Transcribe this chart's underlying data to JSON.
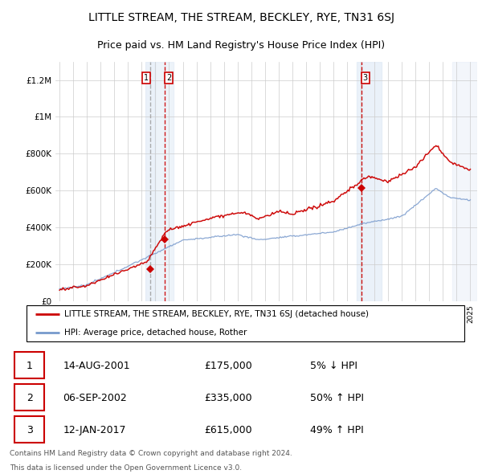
{
  "title": "LITTLE STREAM, THE STREAM, BECKLEY, RYE, TN31 6SJ",
  "subtitle": "Price paid vs. HM Land Registry's House Price Index (HPI)",
  "title_fontsize": 10,
  "subtitle_fontsize": 9,
  "ylim": [
    0,
    1300000
  ],
  "yticks": [
    0,
    200000,
    400000,
    600000,
    800000,
    1000000,
    1200000
  ],
  "ytick_labels": [
    "£0",
    "£200K",
    "£400K",
    "£600K",
    "£800K",
    "£1M",
    "£1.2M"
  ],
  "grid_color": "#cccccc",
  "hpi_line_color": "#7799cc",
  "price_line_color": "#cc0000",
  "sale_marker_color": "#cc0000",
  "vband_color": "#ddeeff",
  "vline1_color": "#aaaaaa",
  "vline2_color": "#cc0000",
  "transactions": [
    {
      "date_num": 2001.62,
      "price": 175000,
      "label": "1",
      "pct": "5% ↓ HPI",
      "date_str": "14-AUG-2001"
    },
    {
      "date_num": 2002.68,
      "price": 335000,
      "label": "2",
      "pct": "50% ↑ HPI",
      "date_str": "06-SEP-2002"
    },
    {
      "date_num": 2017.03,
      "price": 615000,
      "label": "3",
      "pct": "49% ↑ HPI",
      "date_str": "12-JAN-2017"
    }
  ],
  "legend_entries": [
    "LITTLE STREAM, THE STREAM, BECKLEY, RYE, TN31 6SJ (detached house)",
    "HPI: Average price, detached house, Rother"
  ],
  "footnote1": "Contains HM Land Registry data © Crown copyright and database right 2024.",
  "footnote2": "This data is licensed under the Open Government Licence v3.0.",
  "xlim_start": 1994.7,
  "xlim_end": 2025.5
}
